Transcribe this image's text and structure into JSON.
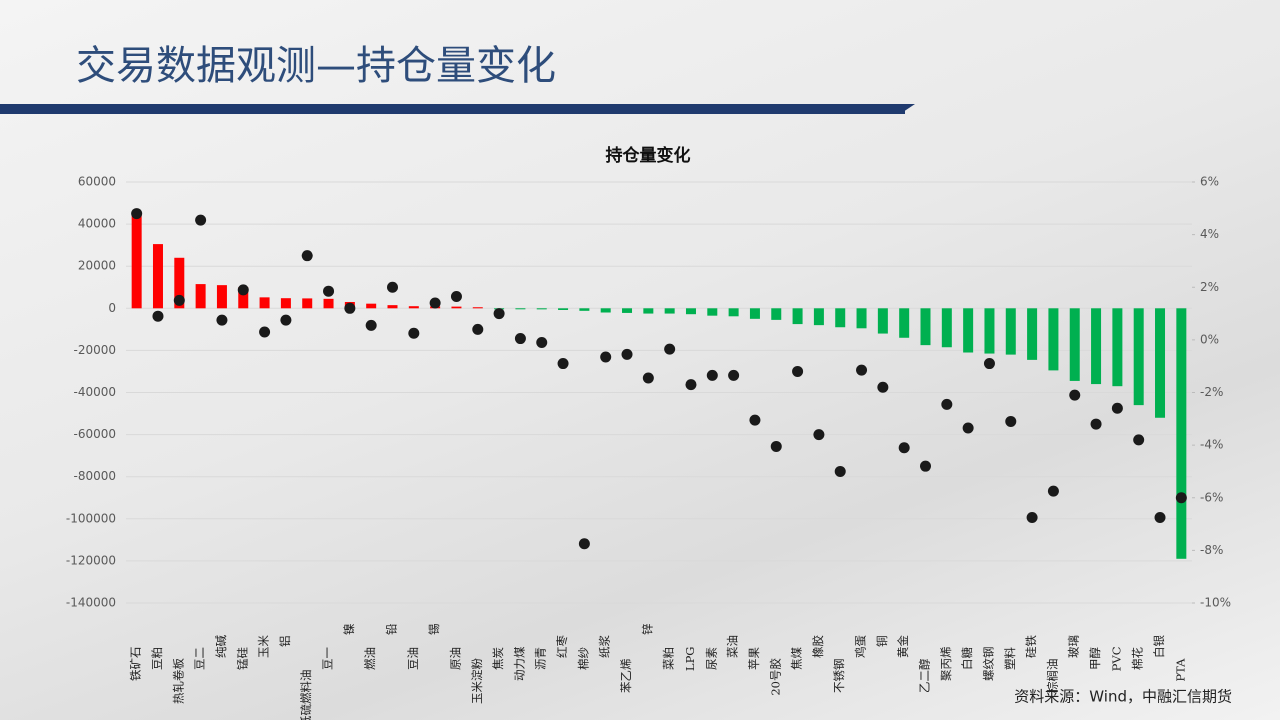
{
  "page_title": "交易数据观测—持仓量变化",
  "source": "资料来源：Wind，中融汇信期货",
  "chart_data": {
    "type": "bar",
    "title": "持仓量变化",
    "categories": [
      "铁矿石",
      "豆粕",
      "热轧卷板",
      "豆二",
      "纯碱",
      "锰硅",
      "玉米",
      "铝",
      "低硫燃料油",
      "豆一",
      "镍",
      "燃油",
      "铅",
      "豆油",
      "锡",
      "原油",
      "玉米淀粉",
      "焦炭",
      "动力煤",
      "沥青",
      "红枣",
      "棉纱",
      "纸浆",
      "苯乙烯",
      "锌",
      "菜粕",
      "LPG",
      "尿素",
      "菜油",
      "苹果",
      "20号胶",
      "焦煤",
      "橡胶",
      "不锈钢",
      "鸡蛋",
      "铜",
      "黄金",
      "乙二醇",
      "聚丙烯",
      "白糖",
      "螺纹钢",
      "塑料",
      "硅铁",
      "棕榈油",
      "玻璃",
      "甲醇",
      "PVC",
      "棉花",
      "白银",
      "PTA"
    ],
    "values": [
      44500,
      30500,
      24000,
      11500,
      11000,
      10000,
      5200,
      4800,
      4700,
      4500,
      3000,
      2200,
      1500,
      1000,
      900,
      800,
      500,
      -200,
      -300,
      -500,
      -800,
      -1200,
      -2000,
      -2200,
      -2500,
      -2500,
      -2800,
      -3500,
      -3800,
      -5000,
      -5500,
      -7500,
      -8000,
      -9000,
      -9500,
      -12000,
      -14000,
      -17500,
      -18500,
      -21000,
      -21500,
      -22000,
      -24500,
      -29500,
      -34500,
      -36000,
      -37000,
      -46000,
      -52000,
      -119000
    ],
    "positive_color": "#ff0000",
    "negative_color": "#00b050",
    "series": [
      {
        "type": "scatter",
        "axis": "y2",
        "color": "#1a1a1a",
        "values": [
          4.8,
          0.9,
          1.5,
          4.55,
          0.75,
          1.9,
          0.3,
          0.75,
          3.2,
          1.85,
          1.2,
          0.55,
          2.0,
          0.25,
          1.4,
          1.65,
          0.4,
          1.0,
          0.05,
          -0.1,
          -0.9,
          -7.75,
          -0.65,
          -0.55,
          -1.45,
          -0.35,
          -1.7,
          -1.35,
          -1.35,
          -3.05,
          -4.05,
          -1.2,
          -3.6,
          -5.0,
          -1.15,
          -1.8,
          -4.1,
          -4.8,
          -2.45,
          -3.35,
          -0.9,
          -3.1,
          -6.75,
          -5.75,
          -2.1,
          -3.2,
          -2.6,
          -3.8,
          -6.75,
          -6.0
        ]
      }
    ],
    "ylim": [
      -140000,
      60000
    ],
    "yticks": [
      60000,
      40000,
      20000,
      0,
      -20000,
      -40000,
      -60000,
      -80000,
      -100000,
      -120000,
      -140000
    ],
    "y2lim": [
      -10,
      6
    ],
    "y2ticks": [
      {
        "value": 6,
        "label": "6%"
      },
      {
        "value": 4,
        "label": "4%"
      },
      {
        "value": 2,
        "label": "2%"
      },
      {
        "value": 0,
        "label": "0%"
      },
      {
        "value": -2,
        "label": "-2%"
      },
      {
        "value": -4,
        "label": "-4%"
      },
      {
        "value": -6,
        "label": "-6%"
      },
      {
        "value": -8,
        "label": "-8%"
      },
      {
        "value": -10,
        "label": "-10%"
      }
    ],
    "grid": true
  }
}
